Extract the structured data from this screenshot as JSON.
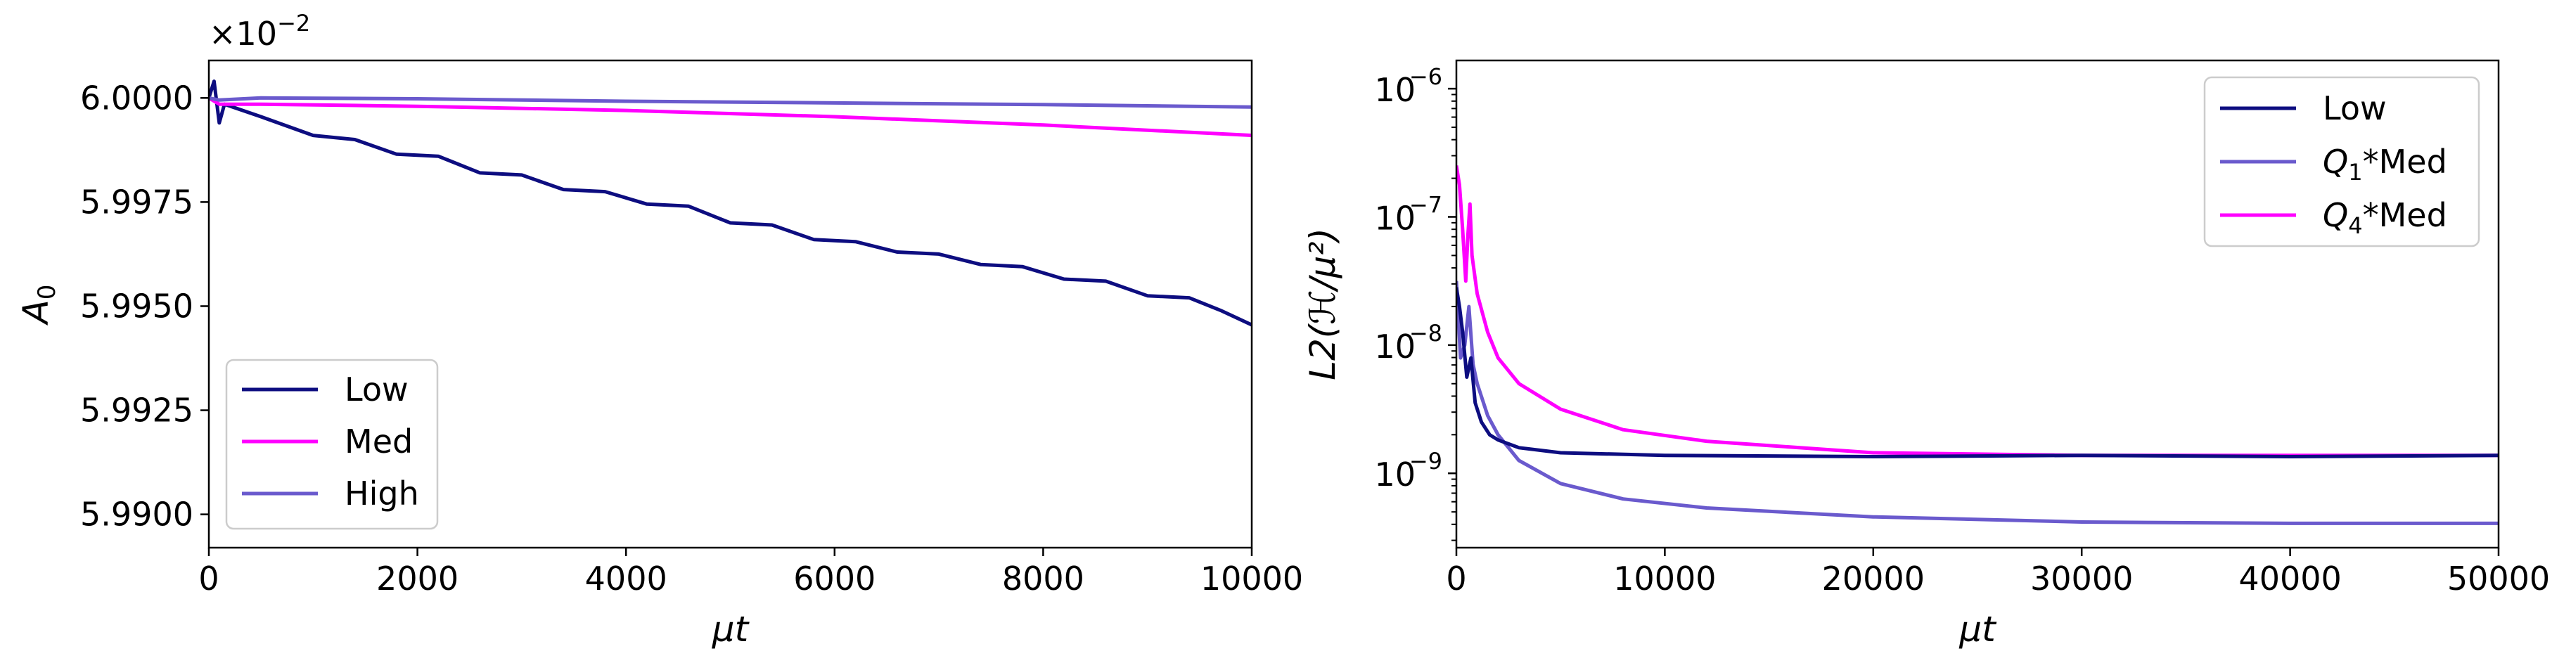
{
  "chart_data": [
    {
      "type": "line",
      "xlabel": "μt",
      "ylabel": "A",
      "ylabel_sub": "0",
      "offset_text": "×10",
      "offset_exp": "−2",
      "xlim": [
        0,
        10000
      ],
      "ylim": [
        5.9892,
        6.0009
      ],
      "x_ticks": [
        0,
        2000,
        4000,
        6000,
        8000,
        10000
      ],
      "x_tick_labels": [
        "0",
        "2000",
        "4000",
        "6000",
        "8000",
        "10000"
      ],
      "y_ticks": [
        5.99,
        5.9925,
        5.995,
        5.9975,
        6.0
      ],
      "y_tick_labels": [
        "5.9900",
        "5.9925",
        "5.9950",
        "5.9975",
        "6.0000"
      ],
      "legend_position": "lower-left",
      "series": [
        {
          "name": "Low",
          "color": "#0d0d80",
          "points": [
            [
              0,
              6.0
            ],
            [
              50,
              6.0004
            ],
            [
              100,
              5.9994
            ],
            [
              150,
              5.99985
            ],
            [
              500,
              5.99955
            ],
            [
              1000,
              5.9991
            ],
            [
              1400,
              5.999
            ],
            [
              1800,
              5.99865
            ],
            [
              2200,
              5.9986
            ],
            [
              2600,
              5.9982
            ],
            [
              3000,
              5.99815
            ],
            [
              3400,
              5.9978
            ],
            [
              3800,
              5.99775
            ],
            [
              4200,
              5.99745
            ],
            [
              4600,
              5.9974
            ],
            [
              5000,
              5.997
            ],
            [
              5400,
              5.99695
            ],
            [
              5800,
              5.9966
            ],
            [
              6200,
              5.99655
            ],
            [
              6600,
              5.9963
            ],
            [
              7000,
              5.99625
            ],
            [
              7400,
              5.996
            ],
            [
              7800,
              5.99595
            ],
            [
              8200,
              5.99565
            ],
            [
              8600,
              5.9956
            ],
            [
              9000,
              5.99525
            ],
            [
              9400,
              5.9952
            ],
            [
              9700,
              5.9949
            ],
            [
              10000,
              5.99455
            ]
          ]
        },
        {
          "name": "Med",
          "color": "#ff00ff",
          "points": [
            [
              0,
              6.0
            ],
            [
              100,
              5.99985
            ],
            [
              500,
              5.99985
            ],
            [
              2000,
              5.9998
            ],
            [
              4000,
              5.9997
            ],
            [
              6000,
              5.99955
            ],
            [
              8000,
              5.99935
            ],
            [
              10000,
              5.9991
            ]
          ]
        },
        {
          "name": "High",
          "color": "#6a5acd",
          "points": [
            [
              0,
              6.0
            ],
            [
              100,
              5.99995
            ],
            [
              500,
              6.0
            ],
            [
              2000,
              5.99998
            ],
            [
              4000,
              5.99992
            ],
            [
              6000,
              5.99988
            ],
            [
              8000,
              5.99984
            ],
            [
              10000,
              5.99978
            ]
          ]
        }
      ]
    },
    {
      "type": "line",
      "y_scale": "log",
      "xlabel": "μt",
      "ylabel": "L2(ℋ/μ²)",
      "xlim": [
        0,
        50000
      ],
      "ylim_log10": [
        -9.58,
        -5.78
      ],
      "x_ticks": [
        0,
        10000,
        20000,
        30000,
        40000,
        50000
      ],
      "x_tick_labels": [
        "0",
        "10000",
        "20000",
        "30000",
        "40000",
        "50000"
      ],
      "y_ticks_log10": [
        -9,
        -8,
        -7,
        -6
      ],
      "y_tick_base": "10",
      "y_tick_exps": [
        "−9",
        "−8",
        "−7",
        "−6"
      ],
      "legend_position": "top-right",
      "series": [
        {
          "name": "Low",
          "color": "#0d0d80",
          "points": [
            [
              0,
              -7.55
            ],
            [
              150,
              -7.7
            ],
            [
              300,
              -7.9
            ],
            [
              500,
              -8.25
            ],
            [
              700,
              -8.1
            ],
            [
              900,
              -8.45
            ],
            [
              1200,
              -8.6
            ],
            [
              1600,
              -8.7
            ],
            [
              2000,
              -8.74
            ],
            [
              3000,
              -8.8
            ],
            [
              5000,
              -8.84
            ],
            [
              10000,
              -8.86
            ],
            [
              20000,
              -8.87
            ],
            [
              30000,
              -8.86
            ],
            [
              40000,
              -8.87
            ],
            [
              50000,
              -8.86
            ]
          ]
        },
        {
          "name": "Q1*Med",
          "name_base": "Q",
          "name_sub": "1",
          "name_rest": "*Med",
          "color": "#6a5acd",
          "points": [
            [
              0,
              -7.5
            ],
            [
              200,
              -8.1
            ],
            [
              400,
              -8.0
            ],
            [
              600,
              -7.7
            ],
            [
              800,
              -8.15
            ],
            [
              1000,
              -8.3
            ],
            [
              1500,
              -8.55
            ],
            [
              2000,
              -8.7
            ],
            [
              3000,
              -8.9
            ],
            [
              5000,
              -9.08
            ],
            [
              8000,
              -9.2
            ],
            [
              12000,
              -9.27
            ],
            [
              20000,
              -9.34
            ],
            [
              30000,
              -9.38
            ],
            [
              40000,
              -9.39
            ],
            [
              50000,
              -9.39
            ]
          ]
        },
        {
          "name": "Q4*Med",
          "name_base": "Q",
          "name_sub": "4",
          "name_rest": "*Med",
          "color": "#ff00ff",
          "points": [
            [
              0,
              -6.6
            ],
            [
              150,
              -6.75
            ],
            [
              300,
              -7.1
            ],
            [
              450,
              -7.5
            ],
            [
              550,
              -7.15
            ],
            [
              650,
              -6.9
            ],
            [
              750,
              -7.3
            ],
            [
              1000,
              -7.6
            ],
            [
              1500,
              -7.9
            ],
            [
              2000,
              -8.1
            ],
            [
              3000,
              -8.3
            ],
            [
              5000,
              -8.5
            ],
            [
              8000,
              -8.66
            ],
            [
              12000,
              -8.75
            ],
            [
              20000,
              -8.84
            ],
            [
              30000,
              -8.86
            ],
            [
              40000,
              -8.86
            ],
            [
              50000,
              -8.86
            ]
          ]
        }
      ]
    }
  ]
}
